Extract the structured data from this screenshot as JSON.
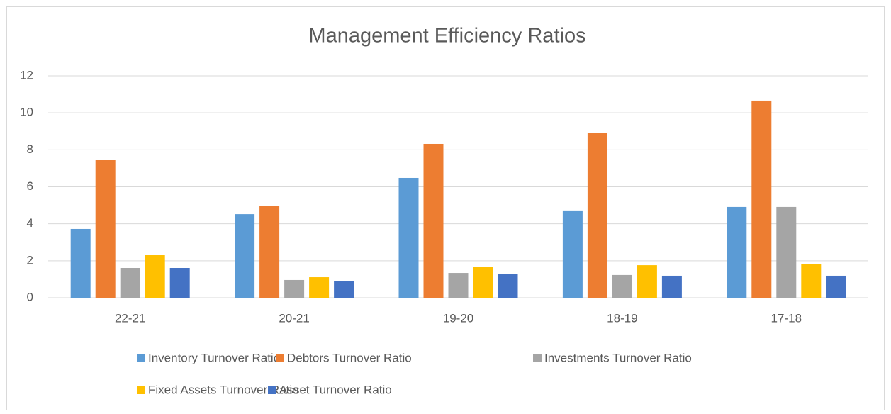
{
  "chart_data": {
    "type": "bar",
    "title": "Management Efficiency Ratios",
    "categories": [
      "22-21",
      "20-21",
      "19-20",
      "18-19",
      "17-18"
    ],
    "series": [
      {
        "name": "Inventory Turnover Ratio",
        "color": "#5b9bd5",
        "values": [
          3.72,
          4.52,
          6.48,
          4.72,
          4.91
        ]
      },
      {
        "name": "Debtors Turnover Ratio",
        "color": "#ed7d31",
        "values": [
          7.44,
          4.95,
          8.32,
          8.9,
          10.66
        ]
      },
      {
        "name": "Investments Turnover Ratio",
        "color": "#a5a5a5",
        "values": [
          1.61,
          0.96,
          1.34,
          1.23,
          4.91
        ]
      },
      {
        "name": "Fixed Assets Turnover Ratio",
        "color": "#ffc000",
        "values": [
          2.3,
          1.11,
          1.65,
          1.76,
          1.84
        ]
      },
      {
        "name": "Asset Turnover Ratio",
        "color": "#4472c4",
        "values": [
          1.61,
          0.92,
          1.3,
          1.19,
          1.19
        ]
      }
    ],
    "ylim": [
      0,
      12
    ],
    "yticks": [
      0,
      2,
      4,
      6,
      8,
      10,
      12
    ],
    "grid": true,
    "legend": "bottom"
  }
}
